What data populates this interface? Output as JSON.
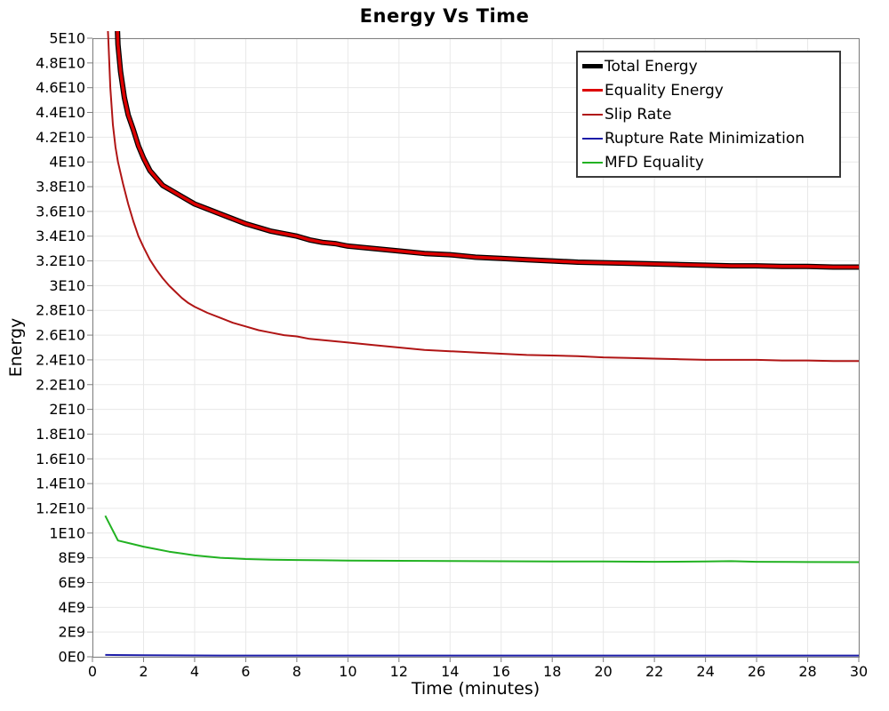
{
  "chart_data": {
    "type": "line",
    "title": "Energy Vs Time",
    "xlabel": "Time (minutes)",
    "ylabel": "Energy",
    "xlim": [
      0,
      30
    ],
    "ylim": [
      0,
      50000000000.0
    ],
    "grid": true,
    "legend_position": "top-right",
    "x_ticks": [
      0,
      2,
      4,
      6,
      8,
      10,
      12,
      14,
      16,
      18,
      20,
      22,
      24,
      26,
      28,
      30
    ],
    "x_tick_labels": [
      "0",
      "2",
      "4",
      "6",
      "8",
      "10",
      "12",
      "14",
      "16",
      "18",
      "20",
      "22",
      "24",
      "26",
      "28",
      "30"
    ],
    "y_ticks": [
      0,
      2000000000.0,
      4000000000.0,
      6000000000.0,
      8000000000.0,
      10000000000.0,
      12000000000.0,
      14000000000.0,
      16000000000.0,
      18000000000.0,
      20000000000.0,
      22000000000.0,
      24000000000.0,
      26000000000.0,
      28000000000.0,
      30000000000.0,
      32000000000.0,
      34000000000.0,
      36000000000.0,
      38000000000.0,
      40000000000.0,
      42000000000.0,
      44000000000.0,
      46000000000.0,
      48000000000.0,
      50000000000.0
    ],
    "y_tick_labels": [
      "0E0",
      "2E9",
      "4E9",
      "6E9",
      "8E9",
      "1E10",
      "1.2E10",
      "1.4E10",
      "1.6E10",
      "1.8E10",
      "2E10",
      "2.2E10",
      "2.4E10",
      "2.6E10",
      "2.8E10",
      "3E10",
      "3.2E10",
      "3.4E10",
      "3.6E10",
      "3.8E10",
      "4E10",
      "4.2E10",
      "4.4E10",
      "4.6E10",
      "4.8E10",
      "5E10"
    ],
    "colors": {
      "grid": "#E8E8E8",
      "plot_border": "#808080",
      "tick": "#808080",
      "text": "#000000",
      "legend_border": "#3a3a3a"
    },
    "series": [
      {
        "name": "Total Energy",
        "color": "#000000",
        "width": 6,
        "points": [
          [
            0.92,
            54000000000.0
          ],
          [
            1.0,
            49500000000.0
          ],
          [
            1.1,
            47300000000.0
          ],
          [
            1.25,
            45200000000.0
          ],
          [
            1.4,
            43800000000.0
          ],
          [
            1.6,
            42600000000.0
          ],
          [
            1.8,
            41300000000.0
          ],
          [
            2.0,
            40300000000.0
          ],
          [
            2.25,
            39300000000.0
          ],
          [
            2.5,
            38700000000.0
          ],
          [
            2.75,
            38100000000.0
          ],
          [
            3.0,
            37800000000.0
          ],
          [
            3.5,
            37200000000.0
          ],
          [
            4.0,
            36600000000.0
          ],
          [
            4.5,
            36200000000.0
          ],
          [
            5.0,
            35800000000.0
          ],
          [
            5.5,
            35400000000.0
          ],
          [
            6.0,
            35000000000.0
          ],
          [
            6.5,
            34700000000.0
          ],
          [
            7.0,
            34400000000.0
          ],
          [
            7.5,
            34200000000.0
          ],
          [
            8.0,
            34000000000.0
          ],
          [
            8.5,
            33700000000.0
          ],
          [
            9.0,
            33500000000.0
          ],
          [
            9.5,
            33400000000.0
          ],
          [
            10,
            33200000000.0
          ],
          [
            11,
            33000000000.0
          ],
          [
            12,
            32800000000.0
          ],
          [
            13,
            32600000000.0
          ],
          [
            14,
            32500000000.0
          ],
          [
            15,
            32300000000.0
          ],
          [
            16,
            32200000000.0
          ],
          [
            17,
            32100000000.0
          ],
          [
            18,
            32000000000.0
          ],
          [
            19,
            31900000000.0
          ],
          [
            20,
            31850000000.0
          ],
          [
            21,
            31800000000.0
          ],
          [
            22,
            31750000000.0
          ],
          [
            23,
            31700000000.0
          ],
          [
            24,
            31650000000.0
          ],
          [
            25,
            31600000000.0
          ],
          [
            26,
            31600000000.0
          ],
          [
            27,
            31550000000.0
          ],
          [
            28,
            31550000000.0
          ],
          [
            29,
            31500000000.0
          ],
          [
            30,
            31500000000.0
          ]
        ]
      },
      {
        "name": "Equality Energy",
        "color": "#DD0000",
        "width": 3.5,
        "points": [
          [
            0.92,
            54000000000.0
          ],
          [
            1.0,
            49500000000.0
          ],
          [
            1.1,
            47300000000.0
          ],
          [
            1.25,
            45200000000.0
          ],
          [
            1.4,
            43800000000.0
          ],
          [
            1.6,
            42600000000.0
          ],
          [
            1.8,
            41300000000.0
          ],
          [
            2.0,
            40300000000.0
          ],
          [
            2.25,
            39300000000.0
          ],
          [
            2.5,
            38700000000.0
          ],
          [
            2.75,
            38100000000.0
          ],
          [
            3.0,
            37800000000.0
          ],
          [
            3.5,
            37200000000.0
          ],
          [
            4.0,
            36600000000.0
          ],
          [
            4.5,
            36200000000.0
          ],
          [
            5.0,
            35800000000.0
          ],
          [
            5.5,
            35400000000.0
          ],
          [
            6.0,
            35000000000.0
          ],
          [
            6.5,
            34700000000.0
          ],
          [
            7.0,
            34400000000.0
          ],
          [
            7.5,
            34200000000.0
          ],
          [
            8.0,
            34000000000.0
          ],
          [
            8.5,
            33700000000.0
          ],
          [
            9.0,
            33500000000.0
          ],
          [
            9.5,
            33400000000.0
          ],
          [
            10,
            33200000000.0
          ],
          [
            11,
            33000000000.0
          ],
          [
            12,
            32800000000.0
          ],
          [
            13,
            32600000000.0
          ],
          [
            14,
            32500000000.0
          ],
          [
            15,
            32300000000.0
          ],
          [
            16,
            32200000000.0
          ],
          [
            17,
            32100000000.0
          ],
          [
            18,
            32000000000.0
          ],
          [
            19,
            31900000000.0
          ],
          [
            20,
            31850000000.0
          ],
          [
            21,
            31800000000.0
          ],
          [
            22,
            31750000000.0
          ],
          [
            23,
            31700000000.0
          ],
          [
            24,
            31650000000.0
          ],
          [
            25,
            31600000000.0
          ],
          [
            26,
            31600000000.0
          ],
          [
            27,
            31550000000.0
          ],
          [
            28,
            31550000000.0
          ],
          [
            29,
            31500000000.0
          ],
          [
            30,
            31500000000.0
          ]
        ]
      },
      {
        "name": "Slip Rate",
        "color": "#B01515",
        "width": 2,
        "points": [
          [
            0.55,
            53000000000.0
          ],
          [
            0.62,
            50000000000.0
          ],
          [
            0.7,
            46000000000.0
          ],
          [
            0.8,
            43000000000.0
          ],
          [
            0.9,
            41200000000.0
          ],
          [
            1.0,
            40000000000.0
          ],
          [
            1.2,
            38200000000.0
          ],
          [
            1.4,
            36600000000.0
          ],
          [
            1.6,
            35200000000.0
          ],
          [
            1.8,
            34000000000.0
          ],
          [
            2.0,
            33100000000.0
          ],
          [
            2.25,
            32100000000.0
          ],
          [
            2.5,
            31300000000.0
          ],
          [
            2.75,
            30600000000.0
          ],
          [
            3.0,
            30000000000.0
          ],
          [
            3.25,
            29500000000.0
          ],
          [
            3.5,
            29000000000.0
          ],
          [
            3.75,
            28600000000.0
          ],
          [
            4.0,
            28300000000.0
          ],
          [
            4.5,
            27800000000.0
          ],
          [
            5.0,
            27400000000.0
          ],
          [
            5.5,
            27000000000.0
          ],
          [
            6.0,
            26700000000.0
          ],
          [
            6.5,
            26400000000.0
          ],
          [
            7.0,
            26200000000.0
          ],
          [
            7.5,
            26000000000.0
          ],
          [
            8.0,
            25900000000.0
          ],
          [
            8.5,
            25700000000.0
          ],
          [
            9.0,
            25600000000.0
          ],
          [
            9.5,
            25500000000.0
          ],
          [
            10,
            25400000000.0
          ],
          [
            11,
            25200000000.0
          ],
          [
            12,
            25000000000.0
          ],
          [
            13,
            24800000000.0
          ],
          [
            14,
            24700000000.0
          ],
          [
            15,
            24600000000.0
          ],
          [
            16,
            24500000000.0
          ],
          [
            17,
            24400000000.0
          ],
          [
            18,
            24350000000.0
          ],
          [
            19,
            24300000000.0
          ],
          [
            20,
            24200000000.0
          ],
          [
            21,
            24150000000.0
          ],
          [
            22,
            24100000000.0
          ],
          [
            23,
            24050000000.0
          ],
          [
            24,
            24000000000.0
          ],
          [
            25,
            24000000000.0
          ],
          [
            26,
            24000000000.0
          ],
          [
            27,
            23950000000.0
          ],
          [
            28,
            23950000000.0
          ],
          [
            29,
            23900000000.0
          ],
          [
            30,
            23900000000.0
          ]
        ]
      },
      {
        "name": "Rupture Rate Minimization",
        "color": "#1C1CA8",
        "width": 2,
        "points": [
          [
            0.5,
            150000000.0
          ],
          [
            2,
            120000000.0
          ],
          [
            5,
            100000000.0
          ],
          [
            10,
            100000000.0
          ],
          [
            15,
            100000000.0
          ],
          [
            20,
            100000000.0
          ],
          [
            25,
            100000000.0
          ],
          [
            30,
            100000000.0
          ]
        ]
      },
      {
        "name": "MFD Equality",
        "color": "#22B222",
        "width": 2,
        "points": [
          [
            0.5,
            11400000000.0
          ],
          [
            1.0,
            9400000000.0
          ],
          [
            1.5,
            9150000000.0
          ],
          [
            2.0,
            8900000000.0
          ],
          [
            2.5,
            8700000000.0
          ],
          [
            3.0,
            8500000000.0
          ],
          [
            3.5,
            8350000000.0
          ],
          [
            4.0,
            8200000000.0
          ],
          [
            4.5,
            8100000000.0
          ],
          [
            5.0,
            8000000000.0
          ],
          [
            5.5,
            7950000000.0
          ],
          [
            6.0,
            7900000000.0
          ],
          [
            7.0,
            7850000000.0
          ],
          [
            8.0,
            7820000000.0
          ],
          [
            9.0,
            7800000000.0
          ],
          [
            10,
            7780000000.0
          ],
          [
            12,
            7760000000.0
          ],
          [
            14,
            7740000000.0
          ],
          [
            16,
            7720000000.0
          ],
          [
            18,
            7710000000.0
          ],
          [
            20,
            7700000000.0
          ],
          [
            22,
            7680000000.0
          ],
          [
            24,
            7700000000.0
          ],
          [
            25,
            7730000000.0
          ],
          [
            26,
            7680000000.0
          ],
          [
            28,
            7660000000.0
          ],
          [
            30,
            7650000000.0
          ]
        ]
      }
    ]
  }
}
